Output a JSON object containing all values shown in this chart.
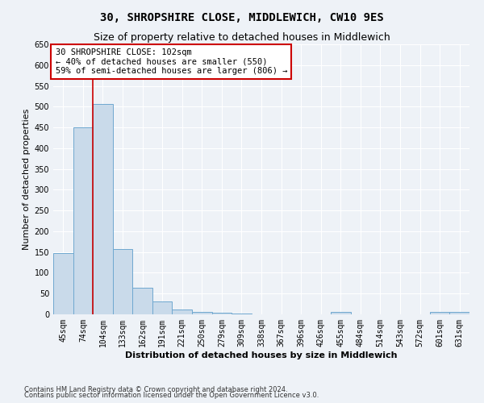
{
  "title": "30, SHROPSHIRE CLOSE, MIDDLEWICH, CW10 9ES",
  "subtitle": "Size of property relative to detached houses in Middlewich",
  "xlabel": "Distribution of detached houses by size in Middlewich",
  "ylabel": "Number of detached properties",
  "footnote1": "Contains HM Land Registry data © Crown copyright and database right 2024.",
  "footnote2": "Contains public sector information licensed under the Open Government Licence v3.0.",
  "categories": [
    "45sqm",
    "74sqm",
    "104sqm",
    "133sqm",
    "162sqm",
    "191sqm",
    "221sqm",
    "250sqm",
    "279sqm",
    "309sqm",
    "338sqm",
    "367sqm",
    "396sqm",
    "426sqm",
    "455sqm",
    "484sqm",
    "514sqm",
    "543sqm",
    "572sqm",
    "601sqm",
    "631sqm"
  ],
  "values": [
    148,
    450,
    507,
    158,
    65,
    32,
    11,
    5,
    3,
    1,
    0,
    0,
    0,
    0,
    5,
    0,
    0,
    0,
    0,
    5,
    5
  ],
  "bar_color": "#c9daea",
  "bar_edge_color": "#6fa8d0",
  "vline_color": "#cc0000",
  "annotation_title": "30 SHROPSHIRE CLOSE: 102sqm",
  "annotation_line1": "← 40% of detached houses are smaller (550)",
  "annotation_line2": "59% of semi-detached houses are larger (806) →",
  "annotation_box_facecolor": "#ffffff",
  "annotation_box_edgecolor": "#cc0000",
  "ylim": [
    0,
    650
  ],
  "yticks": [
    0,
    50,
    100,
    150,
    200,
    250,
    300,
    350,
    400,
    450,
    500,
    550,
    600,
    650
  ],
  "bg_color": "#eef2f7",
  "grid_color": "#ffffff",
  "title_fontsize": 10,
  "subtitle_fontsize": 9,
  "tick_fontsize": 7,
  "ylabel_fontsize": 8,
  "xlabel_fontsize": 8,
  "footnote_fontsize": 6
}
